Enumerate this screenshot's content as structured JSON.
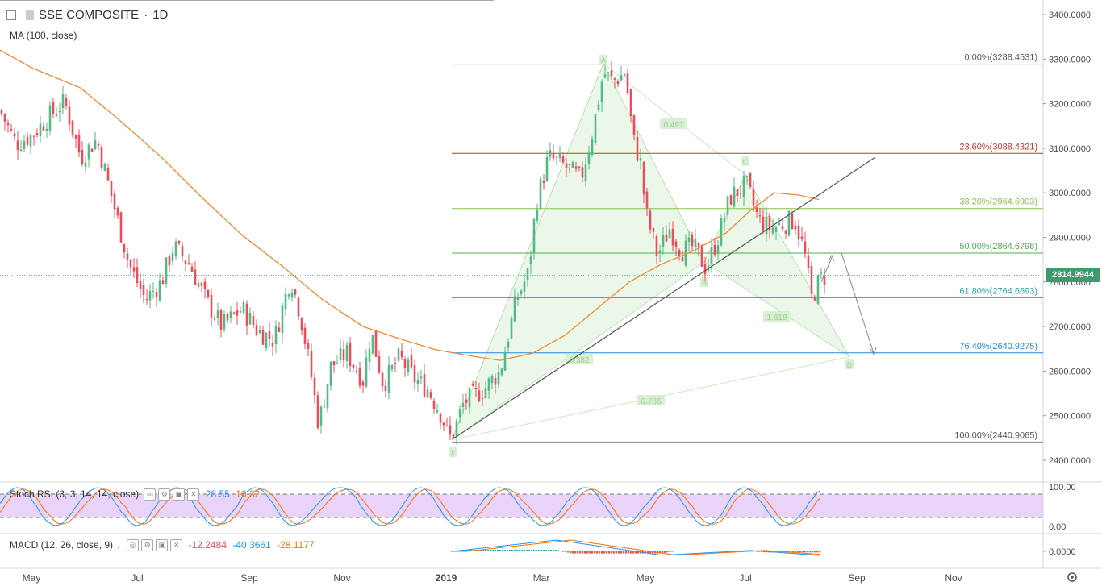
{
  "header": {
    "symbol": "SSE COMPOSITE",
    "interval": "1D",
    "ma_label": "MA (100, close)"
  },
  "current_price": "2814.9944",
  "colors": {
    "up": "#53b987",
    "down": "#eb4d5c",
    "ma": "#f08a35",
    "trendline": "#555555",
    "pattern_fill": "#e6f5e2",
    "stoch_bg": "#e1c4f5",
    "stoch_k": "#2196f3",
    "stoch_d": "#ff6d00",
    "macd": "#2196f3",
    "signal": "#ff6d00",
    "price_tag": "#3f9a6e"
  },
  "chart_data": {
    "type": "candlestick",
    "y_range": [
      2350,
      3420
    ],
    "x_labels": [
      "May",
      "Jul",
      "Sep",
      "Nov",
      "2019",
      "Mar",
      "May",
      "Jul",
      "Sep",
      "Nov"
    ],
    "y_ticks": [
      "3400.0000",
      "3300.0000",
      "3200.0000",
      "3100.0000",
      "3000.0000",
      "2900.0000",
      "2800.0000",
      "2700.0000",
      "2600.0000",
      "2500.0000",
      "2400.0000"
    ],
    "fibonacci": [
      {
        "label": "0.00%(3288.4531)",
        "value": 3288.4531,
        "color": "#888888"
      },
      {
        "label": "23.60%(3088.4321)",
        "value": 3088.4321,
        "color": "#c0392b"
      },
      {
        "label": "38.20%(2964.6903)",
        "value": 2964.6903,
        "color": "#8bc34a"
      },
      {
        "label": "50.00%(2864.6798)",
        "value": 2864.6798,
        "color": "#4caf50"
      },
      {
        "label": "61.80%(2764.6693)",
        "value": 2764.6693,
        "color": "#26a69a"
      },
      {
        "label": "76.40%(2640.9275)",
        "value": 2640.9275,
        "color": "#1e88e5"
      },
      {
        "label": "100.00%(2440.9065)",
        "value": 2440.9065,
        "color": "#888888"
      }
    ],
    "harmonic_ratios": [
      "0.497",
      "0.382",
      "1.618",
      "0.786"
    ],
    "harmonic_points": [
      "X",
      "A",
      "B",
      "C",
      "D"
    ],
    "stoch_rsi": {
      "label": "Stoch RSI (3, 3, 14, 14, close)",
      "k_value": "28.55",
      "d_value": "16.32",
      "ticks": [
        "100.00",
        "0.00"
      ]
    },
    "macd": {
      "label": "MACD (12, 26, close, 9)",
      "hist_value": "-12.2484",
      "macd_value": "-40.3661",
      "signal_value": "-28.1177",
      "ticks": [
        "0.0000"
      ]
    }
  }
}
